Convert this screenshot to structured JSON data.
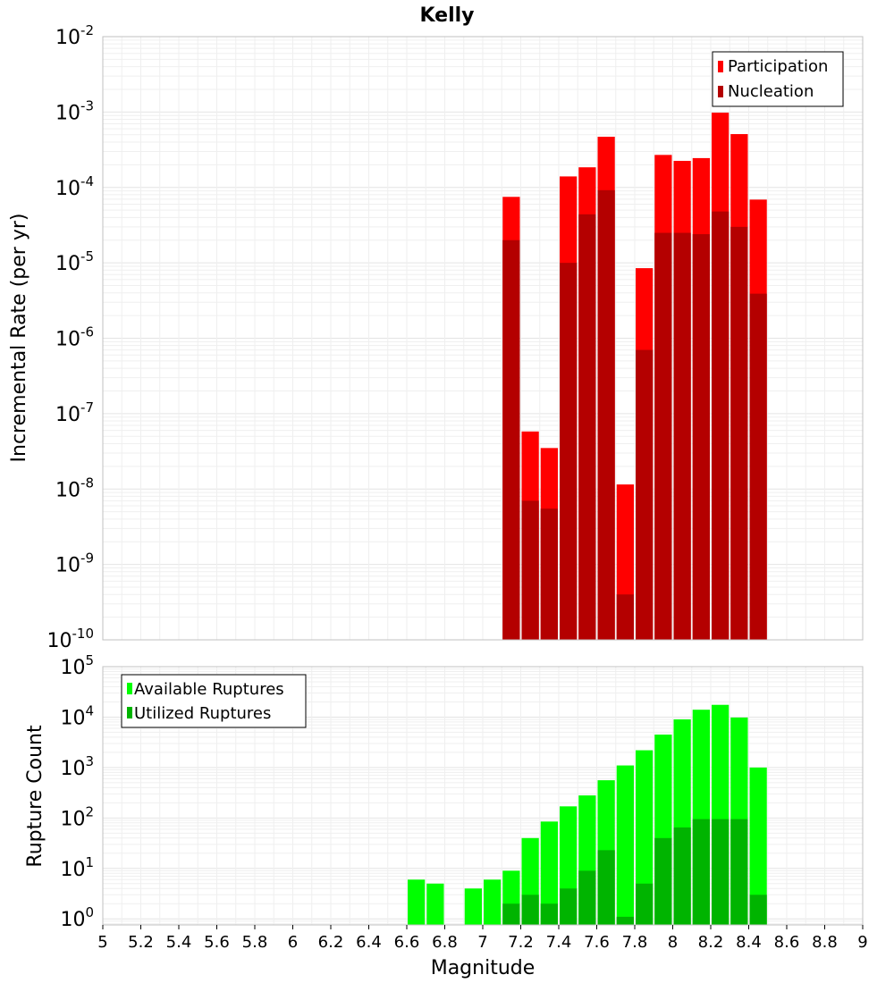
{
  "title": "Kelly",
  "colors": {
    "participation": "#ff0000",
    "nucleation": "#b40000",
    "available": "#00ff00",
    "utilized": "#00b400",
    "grid": "#e8e8e8",
    "frame": "#c0c0c0"
  },
  "chart_data": [
    {
      "type": "bar",
      "ylabel": "Incremental Rate (per yr)",
      "yscale": "log",
      "ylim_exponents": [
        -10,
        -2
      ],
      "y_tick_exponents": [
        "-10",
        "-9",
        "-8",
        "-7",
        "-6",
        "-5",
        "-4",
        "-3",
        "-2"
      ],
      "y_tick_base": "10",
      "xlim": [
        5,
        9
      ],
      "grid": true,
      "legend_position": "top-right",
      "bar_width": 0.1,
      "series": [
        {
          "name": "Participation",
          "x": [
            7.15,
            7.25,
            7.35,
            7.45,
            7.55,
            7.65,
            7.75,
            7.85,
            7.95,
            8.05,
            8.15,
            8.25,
            8.35,
            8.45
          ],
          "values": [
            7.5e-05,
            5.8e-08,
            3.5e-08,
            0.00014,
            0.000185,
            0.00047,
            1.15e-08,
            8.5e-06,
            0.00027,
            0.000225,
            0.000245,
            0.00098,
            0.00051,
            6.9e-05
          ]
        },
        {
          "name": "Nucleation",
          "x": [
            7.15,
            7.25,
            7.35,
            7.45,
            7.55,
            7.65,
            7.75,
            7.85,
            7.95,
            8.05,
            8.15,
            8.25,
            8.35,
            8.45
          ],
          "values": [
            2e-05,
            7e-09,
            5.5e-09,
            1e-05,
            4.4e-05,
            9.2e-05,
            4e-10,
            7e-07,
            2.5e-05,
            2.5e-05,
            2.4e-05,
            4.8e-05,
            3e-05,
            3.9e-06
          ]
        }
      ]
    },
    {
      "type": "bar",
      "xlabel": "Magnitude",
      "ylabel": "Rupture Count",
      "yscale": "log",
      "ylim_exponents": [
        -0.12,
        5
      ],
      "y_tick_exponents": [
        "0",
        "1",
        "2",
        "3",
        "4",
        "5"
      ],
      "y_tick_base": "10",
      "xlim": [
        5,
        9
      ],
      "x_ticks": [
        "5",
        "5.2",
        "5.4",
        "5.6",
        "5.8",
        "6",
        "6.2",
        "6.4",
        "6.6",
        "6.8",
        "7",
        "7.2",
        "7.4",
        "7.6",
        "7.8",
        "8",
        "8.2",
        "8.4",
        "8.6",
        "8.8",
        "9"
      ],
      "grid": true,
      "legend_position": "top-left",
      "bar_width": 0.1,
      "series": [
        {
          "name": "Available Ruptures",
          "x": [
            6.65,
            6.75,
            6.95,
            7.05,
            7.15,
            7.25,
            7.35,
            7.45,
            7.55,
            7.65,
            7.75,
            7.85,
            7.95,
            8.05,
            8.15,
            8.25,
            8.35,
            8.45
          ],
          "values": [
            6,
            5,
            4,
            6,
            9,
            40,
            85,
            170,
            280,
            560,
            1100,
            2200,
            4500,
            9000,
            14000,
            17500,
            9800,
            1000
          ]
        },
        {
          "name": "Utilized Ruptures",
          "x": [
            7.15,
            7.25,
            7.35,
            7.45,
            7.55,
            7.65,
            7.75,
            7.85,
            7.95,
            8.05,
            8.15,
            8.25,
            8.35,
            8.45
          ],
          "values": [
            2,
            3,
            2,
            4,
            9,
            23,
            1.1,
            5,
            40,
            65,
            95,
            95,
            95,
            3
          ]
        }
      ]
    }
  ]
}
